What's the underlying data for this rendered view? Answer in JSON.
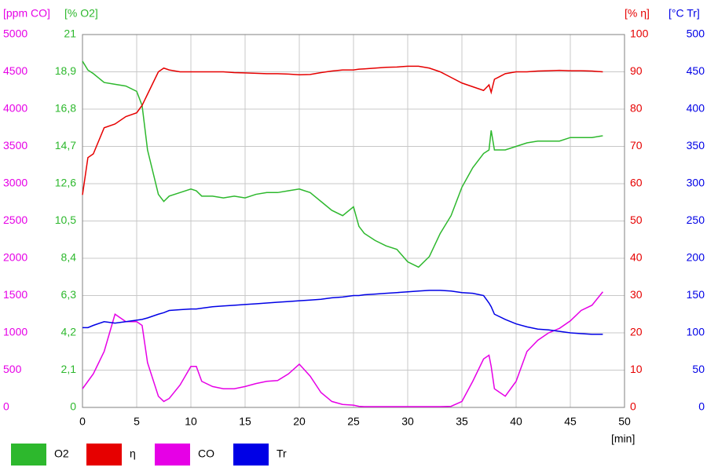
{
  "chart_data": {
    "type": "line",
    "x_label": "[min]",
    "xlim": [
      0,
      50
    ],
    "xticks": [
      0,
      5,
      10,
      15,
      20,
      25,
      30,
      35,
      40,
      45,
      50
    ],
    "grid": true,
    "y_axes": [
      {
        "label": "[ppm CO]",
        "color": "#e600e6",
        "side": "left",
        "ylim": [
          0,
          5000
        ],
        "yticks": [
          0,
          500,
          1000,
          1500,
          2000,
          2500,
          3000,
          3500,
          4000,
          4500,
          5000
        ]
      },
      {
        "label": "[% O2]",
        "color": "#2db82d",
        "side": "left",
        "ylim": [
          0,
          21
        ],
        "yticks": [
          0,
          {
            "value": 2.1,
            "label": "2,1"
          },
          {
            "value": 4.2,
            "label": "4,2"
          },
          {
            "value": 6.3,
            "label": "6,3"
          },
          {
            "value": 8.4,
            "label": "8,4"
          },
          {
            "value": 10.5,
            "label": "10,5"
          },
          {
            "value": 12.6,
            "label": "12,6"
          },
          {
            "value": 14.7,
            "label": "14,7"
          },
          {
            "value": 16.8,
            "label": "16,8"
          },
          {
            "value": 18.9,
            "label": "18,9"
          },
          21
        ]
      },
      {
        "label": "[% η]",
        "color": "#e60000",
        "side": "right",
        "ylim": [
          0,
          100
        ],
        "yticks": [
          0,
          10,
          20,
          30,
          40,
          50,
          60,
          70,
          80,
          90,
          100
        ]
      },
      {
        "label": "[°C Tr]",
        "color": "#0000e6",
        "side": "right",
        "ylim": [
          0,
          500
        ],
        "yticks": [
          0,
          50,
          100,
          150,
          200,
          250,
          300,
          350,
          400,
          450,
          500
        ]
      }
    ],
    "x": [
      0,
      0.5,
      1,
      2,
      3,
      4,
      5,
      5.5,
      6,
      7,
      7.5,
      8,
      9,
      10,
      10.5,
      11,
      12,
      13,
      14,
      15,
      16,
      17,
      18,
      19,
      20,
      21,
      22,
      23,
      24,
      25,
      25.5,
      26,
      27,
      28,
      29,
      30,
      31,
      32,
      33,
      34,
      35,
      36,
      37,
      37.5,
      37.7,
      38,
      39,
      40,
      41,
      42,
      43,
      44,
      45,
      46,
      47,
      48
    ],
    "series": [
      {
        "name": "O2",
        "color": "#2db82d",
        "axis": 1,
        "values": [
          19.5,
          19.0,
          18.8,
          18.3,
          18.2,
          18.1,
          17.8,
          17.0,
          14.5,
          12.0,
          11.6,
          11.9,
          12.1,
          12.3,
          12.2,
          11.9,
          11.9,
          11.8,
          11.9,
          11.8,
          12.0,
          12.1,
          12.1,
          12.2,
          12.3,
          12.1,
          11.6,
          11.1,
          10.8,
          11.3,
          10.2,
          9.8,
          9.4,
          9.1,
          8.9,
          8.2,
          7.9,
          8.5,
          9.8,
          10.8,
          12.4,
          13.5,
          14.3,
          14.5,
          15.6,
          14.5,
          14.5,
          14.7,
          14.9,
          15.0,
          15.0,
          15.0,
          15.2,
          15.2,
          15.2,
          15.3
        ]
      },
      {
        "name": "η",
        "color": "#e60000",
        "axis": 2,
        "values": [
          57,
          67,
          68,
          75,
          76,
          78,
          79,
          81,
          84,
          90,
          91,
          90.5,
          90,
          90,
          90,
          90,
          90,
          90,
          89.8,
          89.7,
          89.6,
          89.5,
          89.5,
          89.4,
          89.2,
          89.3,
          89.8,
          90.2,
          90.5,
          90.5,
          90.7,
          90.8,
          91,
          91.2,
          91.3,
          91.5,
          91.5,
          91,
          90,
          88.5,
          87,
          86,
          85,
          86.5,
          84.5,
          88,
          89.5,
          90,
          90,
          90.2,
          90.3,
          90.4,
          90.3,
          90.3,
          90.2,
          90.0
        ]
      },
      {
        "name": "CO",
        "color": "#e600e6",
        "axis": 0,
        "values": [
          250,
          350,
          450,
          750,
          1250,
          1150,
          1150,
          1100,
          600,
          150,
          80,
          120,
          300,
          550,
          550,
          350,
          280,
          250,
          250,
          280,
          320,
          350,
          360,
          450,
          580,
          420,
          200,
          80,
          40,
          30,
          15,
          10,
          10,
          10,
          10,
          10,
          10,
          10,
          10,
          15,
          80,
          350,
          650,
          700,
          550,
          250,
          150,
          350,
          750,
          900,
          1000,
          1060,
          1160,
          1300,
          1370,
          1550
        ]
      },
      {
        "name": "Tr",
        "color": "#0000e6",
        "axis": 3,
        "values": [
          107,
          107,
          110,
          115,
          113,
          115,
          117,
          118,
          120,
          125,
          127,
          130,
          131,
          132,
          132,
          133,
          135,
          136,
          137,
          138,
          139,
          140,
          141,
          142,
          143,
          144,
          145,
          147,
          148,
          150,
          150,
          151,
          152,
          153,
          154,
          155,
          156,
          157,
          157,
          156,
          154,
          153,
          150,
          140,
          135,
          125,
          118,
          112,
          108,
          105,
          104,
          102,
          100,
          99,
          98,
          98
        ]
      }
    ]
  }
}
